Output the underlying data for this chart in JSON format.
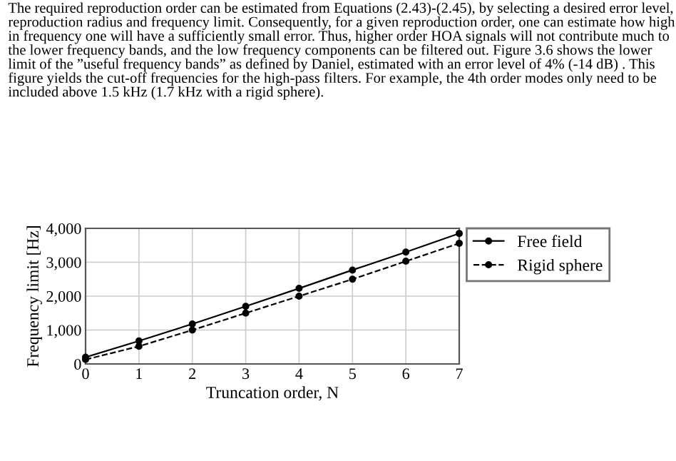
{
  "chart_data": {
    "type": "line",
    "xlabel": "Truncation order, N",
    "ylabel": "Frequency limit [Hz]",
    "annotations": [
      "The required reproduction order can be estimated from Equations (2.43)-(2.45), by selecting a desired error level, reproduction radius and frequency limit. Consequently, for a given reproduction order, one can estimate how high in frequency one will have a sufficiently small error. Thus, higher order HOA signals will not contribute much to the lower frequency bands, and the low frequency components can be filtered out. Figure 3.6 shows the lower limit of the ”useful frequency bands” as defined by Daniel, estimated with an error level of 4% (-14 dB) . This figure yields the cut-off frequencies for the high-pass filters. For example, the 4th order modes only need to be included above 1.5 kHz (1.7 kHz with a rigid sphere)."
    ],
    "x": [
      0,
      1,
      2,
      3,
      4,
      5,
      6,
      7
    ],
    "series": [
      {
        "name": "Free field",
        "color": "#000000",
        "line_style": "solid",
        "values": [
          200,
          680,
          1180,
          1700,
          2230,
          2770,
          3300,
          3850
        ]
      },
      {
        "name": "Rigid sphere",
        "color": "#000000",
        "line_style": "dashed",
        "values": [
          130,
          520,
          1000,
          1500,
          2000,
          2500,
          3030,
          3560
        ]
      }
    ],
    "xlim": [
      0,
      7
    ],
    "xticks": [
      0,
      1,
      2,
      3,
      4,
      5,
      6,
      7
    ],
    "ylim": [
      0,
      4000
    ],
    "yticks": [
      {
        "value": 0,
        "label": "0"
      },
      {
        "value": 1000,
        "label": "1,000"
      },
      {
        "value": 2000,
        "label": "2,000"
      },
      {
        "value": 3000,
        "label": "3,000"
      },
      {
        "value": 4000,
        "label": "4,000"
      }
    ],
    "grid": true,
    "legend": "right",
    "marker": "circle"
  }
}
